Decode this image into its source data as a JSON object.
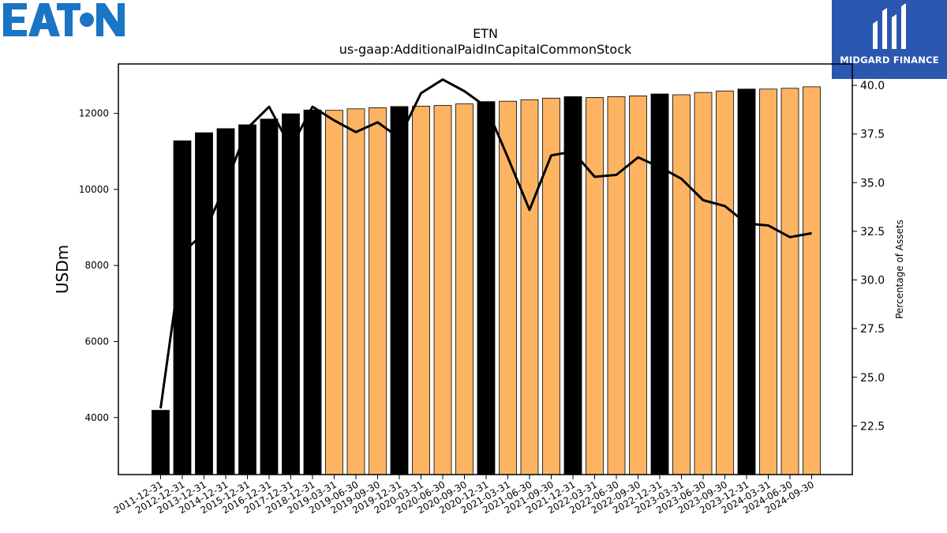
{
  "brand": {
    "left_logo_text": "EATON",
    "left_logo_color": "#1a75c4",
    "right_logo_text": "MIDGARD FINANCE",
    "right_logo_bg": "#2a57b0"
  },
  "chart_data": {
    "type": "bar",
    "title": "ETN",
    "subtitle": "us-gaap:AdditionalPaidInCapitalCommonStock",
    "ylabel": "USDm",
    "y2label": "Percentage of Assets",
    "ylim": [
      2500,
      13300
    ],
    "y2lim": [
      20.0,
      41.1
    ],
    "yticks": [
      4000,
      6000,
      8000,
      10000,
      12000
    ],
    "y2ticks": [
      "22.5",
      "25.0",
      "27.5",
      "30.0",
      "32.5",
      "35.0",
      "37.5",
      "40.0"
    ],
    "colors": {
      "annual": "#000000",
      "quarterly": "#fdb462",
      "line": "#000000"
    },
    "categories": [
      "2011-12-31",
      "2012-12-31",
      "2013-12-31",
      "2014-12-31",
      "2015-12-31",
      "2016-12-31",
      "2017-12-31",
      "2018-12-31",
      "2019-03-31",
      "2019-06-30",
      "2019-09-30",
      "2019-12-31",
      "2020-03-31",
      "2020-06-30",
      "2020-09-30",
      "2020-12-31",
      "2021-03-31",
      "2021-06-30",
      "2021-09-30",
      "2021-12-31",
      "2022-03-31",
      "2022-06-30",
      "2022-09-30",
      "2022-12-31",
      "2023-03-31",
      "2023-06-30",
      "2023-09-30",
      "2023-12-31",
      "2024-03-31",
      "2024-06-30",
      "2024-09-30"
    ],
    "values": [
      4190,
      11280,
      11490,
      11600,
      11700,
      11850,
      11990,
      12090,
      12080,
      12120,
      12150,
      12180,
      12190,
      12210,
      12250,
      12310,
      12320,
      12360,
      12400,
      12440,
      12420,
      12440,
      12460,
      12510,
      12490,
      12550,
      12590,
      12640,
      12640,
      12660,
      12700
    ],
    "bar_kind": [
      "annual",
      "annual",
      "annual",
      "annual",
      "annual",
      "annual",
      "annual",
      "annual",
      "quarterly",
      "quarterly",
      "quarterly",
      "annual",
      "quarterly",
      "quarterly",
      "quarterly",
      "annual",
      "quarterly",
      "quarterly",
      "quarterly",
      "annual",
      "quarterly",
      "quarterly",
      "quarterly",
      "annual",
      "quarterly",
      "quarterly",
      "quarterly",
      "annual",
      "quarterly",
      "quarterly",
      "quarterly"
    ],
    "pct_of_assets": [
      23.4,
      31.4,
      32.4,
      34.9,
      37.8,
      38.9,
      36.8,
      38.9,
      38.2,
      37.6,
      38.1,
      37.3,
      39.6,
      40.3,
      39.7,
      38.9,
      36.3,
      33.6,
      36.4,
      36.6,
      35.3,
      35.4,
      36.3,
      35.8,
      35.2,
      34.1,
      33.8,
      32.9,
      32.8,
      32.2,
      32.4
    ]
  }
}
